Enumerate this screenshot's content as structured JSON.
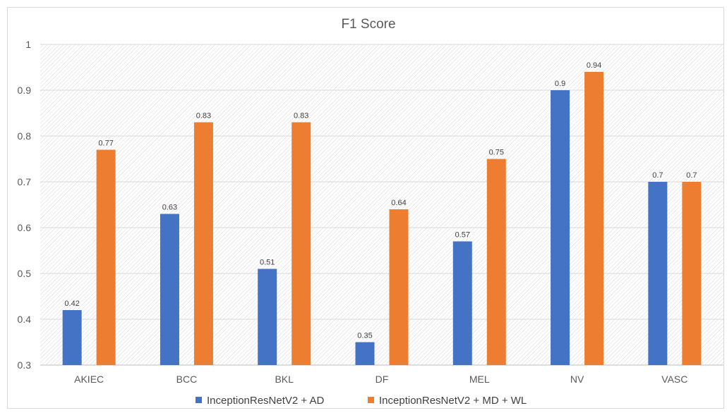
{
  "chart_data": {
    "type": "bar",
    "title": "F1 Score",
    "categories": [
      "AKIEC",
      "BCC",
      "BKL",
      "DF",
      "MEL",
      "NV",
      "VASC"
    ],
    "series": [
      {
        "name": "InceptionResNetV2 + AD",
        "values": [
          0.42,
          0.63,
          0.51,
          0.35,
          0.57,
          0.9,
          0.7
        ],
        "labels": [
          "0.42",
          "0.63",
          "0.51",
          "0.35",
          "0.57",
          "0.9",
          "0.7"
        ],
        "color": "#4472c4"
      },
      {
        "name": "InceptionResNetV2 + MD + WL",
        "values": [
          0.77,
          0.83,
          0.83,
          0.64,
          0.75,
          0.94,
          0.7
        ],
        "labels": [
          "0.77",
          "0.83",
          "0.83",
          "0.64",
          "0.75",
          "0.94",
          "0.7"
        ],
        "color": "#ed7d31"
      }
    ],
    "ylim": [
      0.3,
      1
    ],
    "yticks": [
      "0.3",
      "0.4",
      "0.5",
      "0.6",
      "0.7",
      "0.8",
      "0.9",
      "1"
    ],
    "grid": true,
    "legend": "bottom",
    "xlabel": "",
    "ylabel": ""
  }
}
